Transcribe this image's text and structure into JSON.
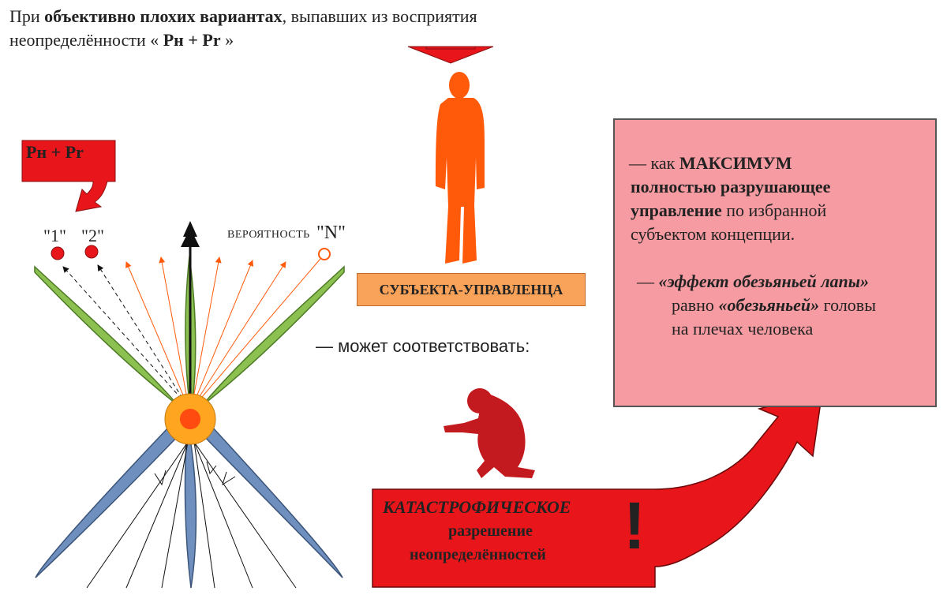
{
  "header": {
    "line1_pre": "При ",
    "line1_bold": "объективно плохих вариантах",
    "line1_post": ", выпавших из восприятия",
    "line2_pre": "неопределённости « ",
    "line2_bold": "Pн + Pr",
    "line2_post": " »"
  },
  "left_arrow_label": "Pн + Pr",
  "labels": {
    "opt1": "\"1\"",
    "opt2": "\"2\"",
    "probability": "ВЕРОЯТНОСТЬ",
    "optN": "\"N\""
  },
  "subject_box": "СУБЪЕКТА-УПРАВЛЕНЦА",
  "corresponds": "—  может соответствовать:",
  "pink_box": {
    "line1_pre": "— как ",
    "line1_bold": "МАКСИМУМ",
    "line2_bold": "полностью разрушающее",
    "line3_bold": "управление",
    "line3_post": " по избранной",
    "line4": "субъектом концепции.",
    "line5_pre": "— ",
    "line5_bold": "«эффект обезьяньей лапы»",
    "line6_pre": "равно ",
    "line6_bold": "«обезьяньей»",
    "line6_post": " головы",
    "line7": "на плечах человека"
  },
  "catastrophe": {
    "title": "КАТАСТРОФИЧЕСКОЕ",
    "line2": "разрешение",
    "line3": "неопределённостей",
    "mark": "!"
  },
  "colors": {
    "red": "#e8151b",
    "orange_figure": "#ff5a0a",
    "dark_red_figure": "#c21a1e",
    "green_leaf": "#8cc152",
    "blue_leaf": "#6f8fbf",
    "pink_box": "#f59ba1",
    "subject_box": "#f9a35a",
    "center_outer": "#ffa51f",
    "center_inner": "#ff4b10"
  }
}
